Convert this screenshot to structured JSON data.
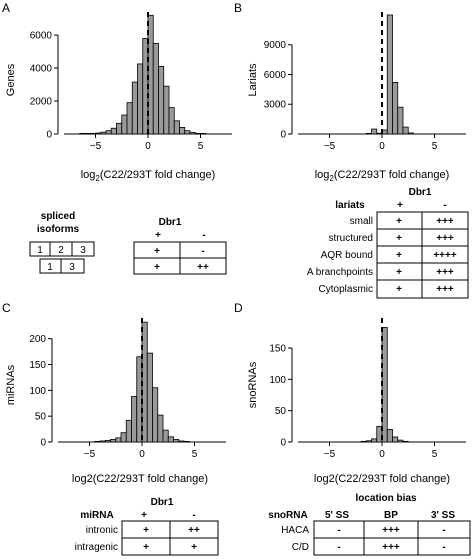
{
  "panels": [
    {
      "letter": "A",
      "ylabel": "Genes",
      "xlabel": "log2(C22/293T fold change)",
      "xlabel_main": "log",
      "xlabel_sub": "2",
      "xlabel_rest": "(C22/293T fold change)"
    },
    {
      "letter": "B",
      "ylabel": "Lariats",
      "xlabel": "log2(C22/293T fold change)",
      "xlabel_main": "log",
      "xlabel_sub": "2",
      "xlabel_rest": "(C22/293T fold change)"
    },
    {
      "letter": "C",
      "ylabel": "miRNAs",
      "xlabel": "log2(C22/293T fold change)"
    },
    {
      "letter": "D",
      "ylabel": "snoRNAs",
      "xlabel": "log2(C22/293T fold change)"
    }
  ],
  "chart_data": [
    {
      "type": "bar",
      "panel": "A",
      "ylabel": "Genes",
      "xlabel": "log2(C22/293T fold change)",
      "xlim": [
        -8,
        8
      ],
      "ylim": [
        0,
        7400
      ],
      "xticks": [
        -5,
        0,
        5
      ],
      "yticks": [
        0,
        2000,
        4000,
        6000
      ],
      "bin_width": 0.5,
      "x": [
        -6.25,
        -5.75,
        -5.25,
        -4.75,
        -4.25,
        -3.75,
        -3.25,
        -2.75,
        -2.25,
        -1.75,
        -1.25,
        -0.75,
        -0.25,
        0.25,
        0.75,
        1.25,
        1.75,
        2.25,
        2.75,
        3.25,
        3.75,
        4.25,
        4.75,
        5.25
      ],
      "values": [
        15,
        25,
        35,
        60,
        110,
        200,
        350,
        650,
        1150,
        1900,
        3150,
        4250,
        5800,
        7200,
        5500,
        4100,
        2900,
        1600,
        800,
        400,
        200,
        100,
        40,
        20
      ],
      "reference_line": 0
    },
    {
      "type": "bar",
      "panel": "B",
      "ylabel": "Lariats",
      "xlabel": "log2(C22/293T fold change)",
      "xlim": [
        -8,
        8
      ],
      "ylim": [
        0,
        12300
      ],
      "xticks": [
        -5,
        0,
        5
      ],
      "yticks": [
        0,
        3000,
        6000,
        9000
      ],
      "bin_width": 0.5,
      "x": [
        -1.25,
        -0.75,
        -0.25,
        0.25,
        0.75,
        1.25,
        1.75,
        2.25,
        2.75
      ],
      "values": [
        30,
        500,
        80,
        400,
        12000,
        5200,
        2700,
        700,
        100
      ],
      "reference_line": 0
    },
    {
      "type": "bar",
      "panel": "C",
      "ylabel": "miRNAs",
      "xlim": [
        -8,
        8
      ],
      "ylim": [
        0,
        240
      ],
      "xticks": [
        -5,
        0,
        5
      ],
      "yticks": [
        0,
        50,
        100,
        150,
        200
      ],
      "bin_width": 0.5,
      "x": [
        -4.25,
        -3.75,
        -3.25,
        -2.75,
        -2.25,
        -1.75,
        -1.25,
        -0.75,
        -0.25,
        0.25,
        0.75,
        1.25,
        1.75,
        2.25,
        2.75,
        3.25,
        3.75,
        4.25
      ],
      "values": [
        1,
        2,
        3,
        5,
        8,
        18,
        42,
        88,
        165,
        232,
        172,
        105,
        52,
        23,
        10,
        5,
        2,
        1
      ],
      "reference_line": 0
    },
    {
      "type": "bar",
      "panel": "D",
      "ylabel": "snoRNAs",
      "xlim": [
        -8,
        8
      ],
      "ylim": [
        0,
        198
      ],
      "xticks": [
        -5,
        0,
        5
      ],
      "yticks": [
        0,
        50,
        100,
        150
      ],
      "bin_width": 0.5,
      "x": [
        -1.75,
        -1.25,
        -0.75,
        -0.25,
        0.25,
        0.75,
        1.25,
        1.75,
        2.25
      ],
      "values": [
        1,
        2,
        5,
        25,
        183,
        20,
        8,
        3,
        1
      ],
      "reference_line": 0
    }
  ],
  "table_A": {
    "row_header": "spliced isoforms",
    "row_header_1": "spliced",
    "row_header_2": "isoforms",
    "group": "Dbr1",
    "cols": [
      "+",
      "-"
    ],
    "iso1": [
      "1",
      "2",
      "3"
    ],
    "iso2": [
      "1",
      "3"
    ],
    "rows": [
      [
        "+",
        "-"
      ],
      [
        "+",
        "++"
      ]
    ]
  },
  "table_B": {
    "title": "lariats",
    "group": "Dbr1",
    "cols": [
      "+",
      "-"
    ],
    "rows": [
      {
        "label": "small",
        "values": [
          "+",
          "+++"
        ]
      },
      {
        "label": "structured",
        "values": [
          "+",
          "+++"
        ]
      },
      {
        "label": "AQR bound",
        "values": [
          "+",
          "++++"
        ]
      },
      {
        "label": "A branchpoints",
        "values": [
          "+",
          "+++"
        ]
      },
      {
        "label": "Cytoplasmic",
        "values": [
          "+",
          "+++"
        ]
      }
    ]
  },
  "table_C": {
    "title": "miRNA",
    "group": "Dbr1",
    "cols": [
      "+",
      "-"
    ],
    "rows": [
      {
        "label": "intronic",
        "values": [
          "+",
          "++"
        ]
      },
      {
        "label": "intragenic",
        "values": [
          "+",
          "+"
        ]
      }
    ]
  },
  "table_D": {
    "title": "snoRNA",
    "group": "location bias",
    "cols": [
      "5' SS",
      "BP",
      "3' SS"
    ],
    "rows": [
      {
        "label": "HACA",
        "values": [
          "-",
          "+++",
          "-"
        ]
      },
      {
        "label": "C/D",
        "values": [
          "-",
          "+++",
          "-"
        ]
      }
    ]
  },
  "colors": {
    "bar_fill": "#9a9a9a",
    "bar_stroke": "#000000",
    "ref_line": "#000000"
  }
}
